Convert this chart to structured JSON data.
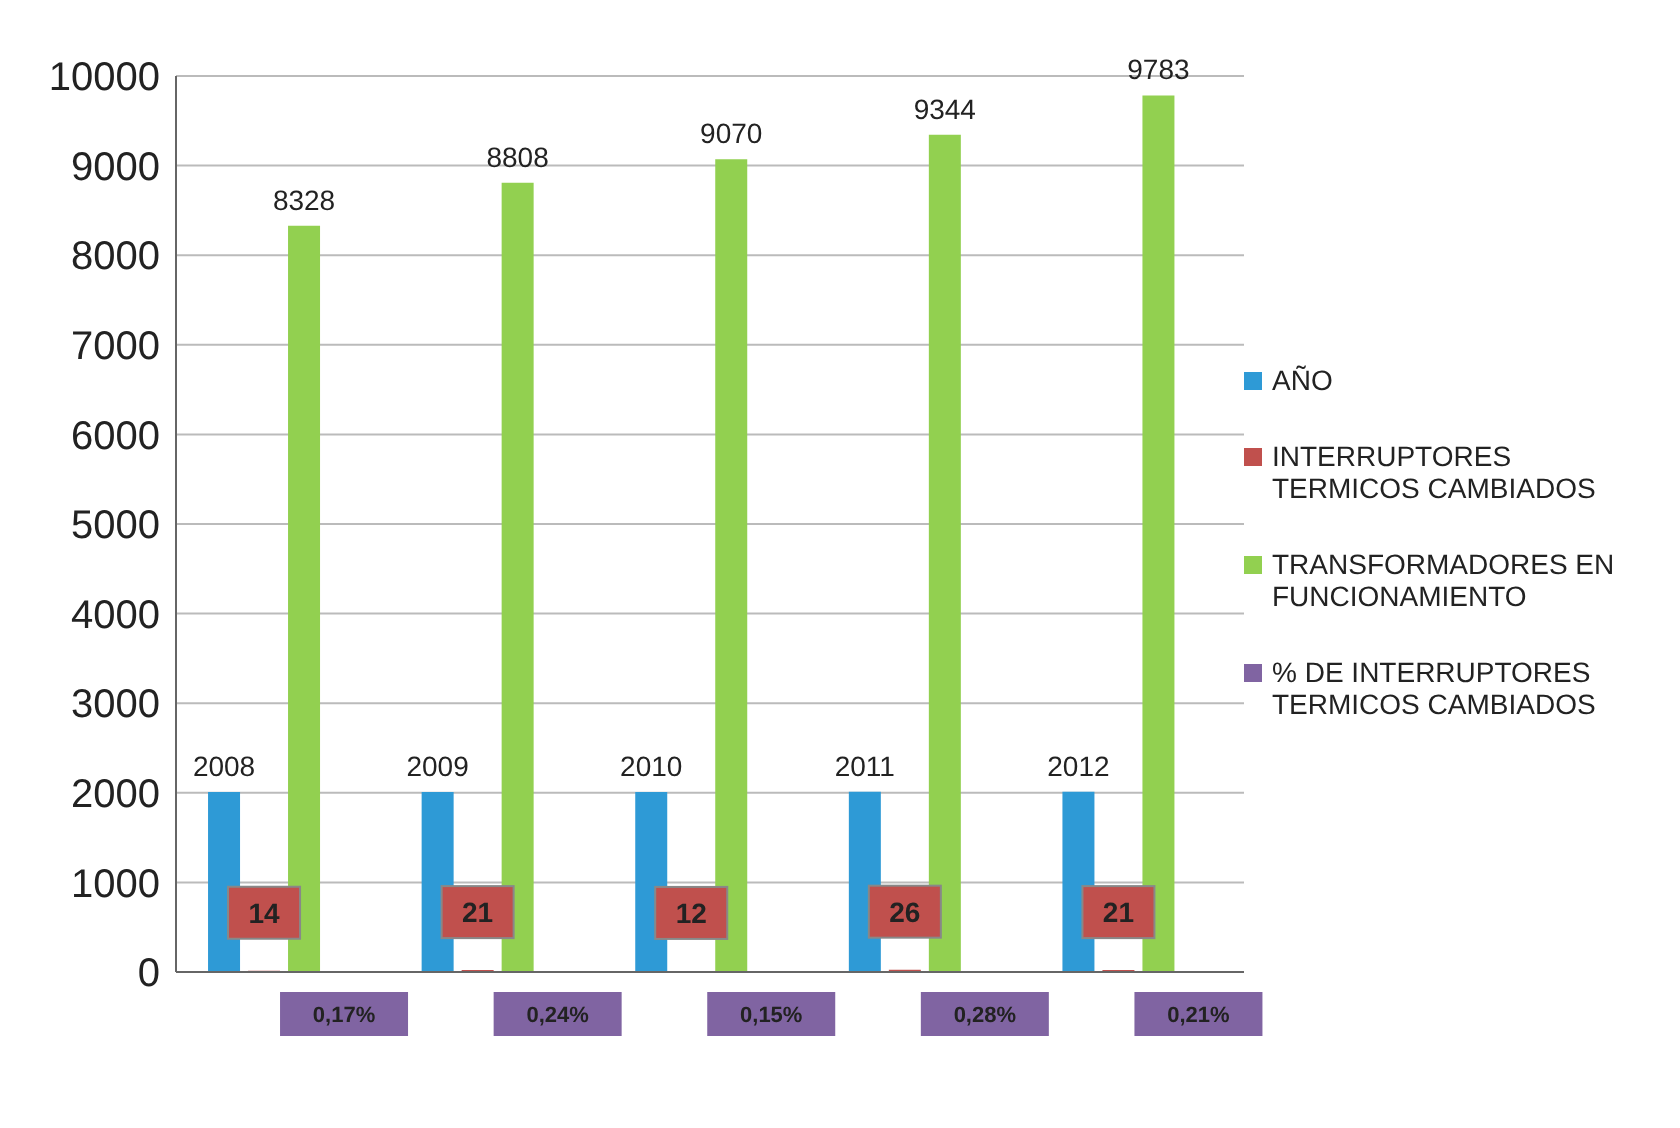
{
  "chart_data": {
    "type": "bar",
    "categories": [
      null,
      null,
      null,
      null,
      null
    ],
    "series": [
      {
        "name": "AÑO",
        "color": "#2e9ad6",
        "values": [
          2008,
          2009,
          2010,
          2011,
          2012
        ],
        "value_labels": [
          "2008",
          "2009",
          "2010",
          "2011",
          "2012"
        ]
      },
      {
        "name": "INTERRUPTORES TERMICOS CAMBIADOS",
        "color": "#c0504d",
        "values": [
          14,
          21,
          12,
          26,
          21
        ],
        "value_labels": [
          "14",
          "21",
          "12",
          "26",
          "21"
        ]
      },
      {
        "name": "TRANSFORMADORES EN FUNCIONAMIENTO",
        "color": "#92d050",
        "values": [
          8328,
          8808,
          9070,
          9344,
          9783
        ],
        "value_labels": [
          "8328",
          "8808",
          "9070",
          "9344",
          "9783"
        ]
      },
      {
        "name": "% DE INTERRUPTORES TERMICOS CAMBIADOS",
        "color": "#8064a2",
        "values": [
          0.17,
          0.24,
          0.15,
          0.28,
          0.21
        ],
        "value_labels": [
          "0,17%",
          "0,24%",
          "0,15%",
          "0,28%",
          "0,21%"
        ]
      }
    ],
    "ylim": [
      0,
      10000
    ],
    "yticks": [
      0,
      1000,
      2000,
      3000,
      4000,
      5000,
      6000,
      7000,
      8000,
      9000,
      10000
    ],
    "grid": "y",
    "legend": "right",
    "tick_labels": "y"
  }
}
